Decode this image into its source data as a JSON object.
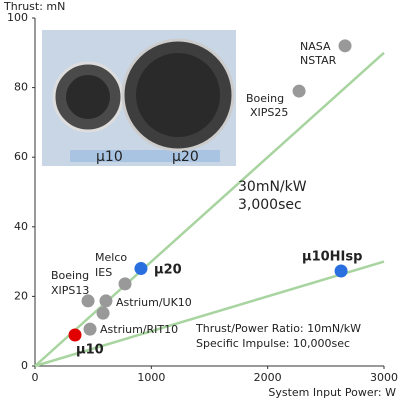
{
  "chart_data": {
    "type": "scatter",
    "y_label": "Thrust: mN",
    "x_label": "System Input Power: W",
    "xlim": [
      0,
      3000
    ],
    "xticks": [
      0,
      1000,
      2000,
      3000
    ],
    "ylim": [
      0,
      100
    ],
    "yticks": [
      0,
      20,
      40,
      60,
      80,
      100
    ],
    "reference_lines": [
      {
        "label": [
          "30mN/kW",
          "3,000sec"
        ],
        "x": [
          0,
          3000
        ],
        "y": [
          0,
          90
        ],
        "color": "#a8d4a0"
      },
      {
        "label": [
          "Thrust/Power Ratio: 10mN/kW",
          "Specific Impulse: 10,000sec"
        ],
        "x": [
          0,
          3000
        ],
        "y": [
          0,
          30
        ],
        "color": "#a8d4a0"
      }
    ],
    "points": [
      {
        "label": [
          "NASA",
          "NSTAR"
        ],
        "x": 2665,
        "y": 92,
        "color": "#999999"
      },
      {
        "label": [
          "Boeing",
          "XIPS25"
        ],
        "x": 2270,
        "y": 79,
        "color": "#999999"
      },
      {
        "label": [
          "μ10HIsp"
        ],
        "x": 2631,
        "y": 27.3,
        "color": "#2a6fe0"
      },
      {
        "label": [
          "μ20"
        ],
        "x": 911,
        "y": 28,
        "color": "#2a6fe0"
      },
      {
        "label": [
          "Melco",
          "IES"
        ],
        "x": 774,
        "y": 23.6,
        "color": "#999999"
      },
      {
        "label": [
          "Boeing",
          "XIPS13"
        ],
        "x": 456,
        "y": 18.7,
        "color": "#999999"
      },
      {
        "label": [
          "Astrium/UK10"
        ],
        "x": 610,
        "y": 18.7,
        "color": "#999999"
      },
      {
        "label": [],
        "x": 585,
        "y": 15.2,
        "color": "#999999"
      },
      {
        "label": [
          "Astrium/RIT10"
        ],
        "x": 473,
        "y": 10.6,
        "color": "#999999"
      },
      {
        "label": [
          "μ10"
        ],
        "x": 344,
        "y": 8.9,
        "color": "#e00000"
      }
    ],
    "inset": {
      "labels": [
        "μ10",
        "μ20"
      ]
    }
  }
}
